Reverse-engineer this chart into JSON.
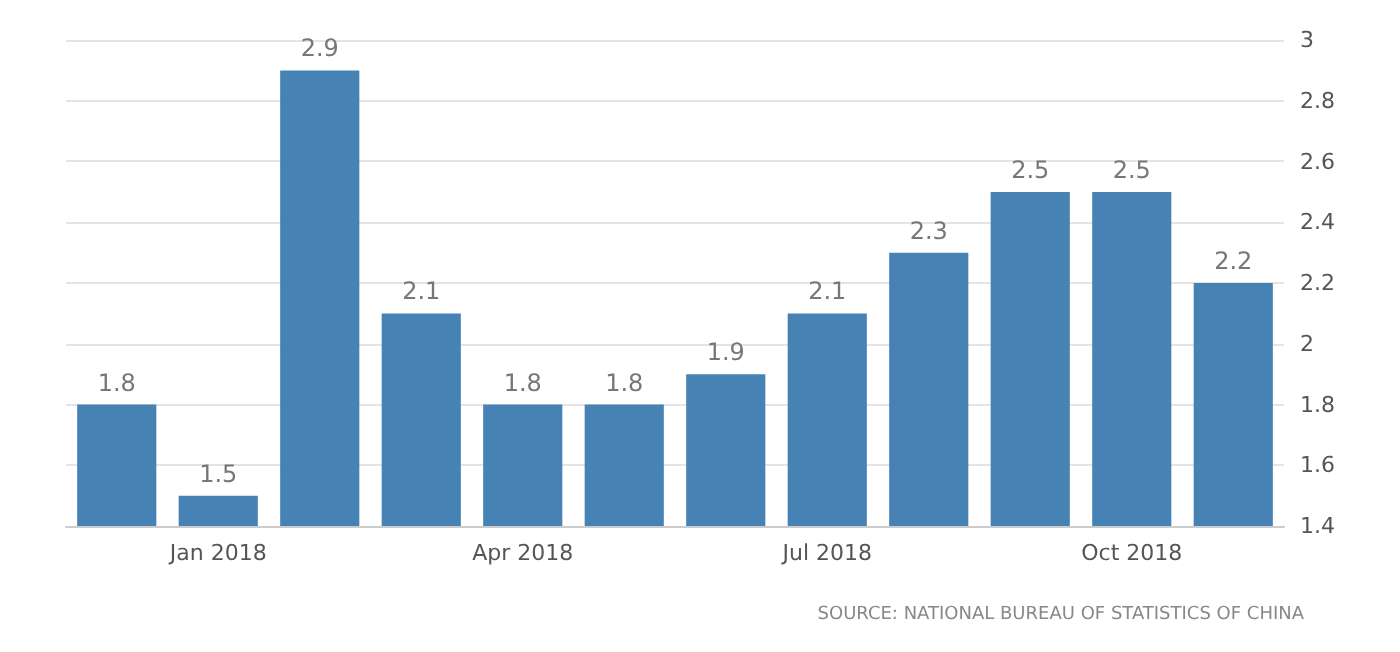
{
  "chart_data": {
    "type": "bar",
    "categories": [
      null,
      "Jan 2018",
      null,
      null,
      "Apr 2018",
      null,
      null,
      "Jul 2018",
      null,
      null,
      "Oct 2018",
      null
    ],
    "values": [
      1.8,
      1.5,
      2.9,
      2.1,
      1.8,
      1.8,
      1.9,
      2.1,
      2.3,
      2.5,
      2.5,
      2.2
    ],
    "color": "#4682b4",
    "ylim": [
      1.4,
      3
    ],
    "yticks": [
      1.4,
      1.6,
      1.8,
      2,
      2.2,
      2.4,
      2.6,
      2.8,
      3
    ],
    "grid": "y",
    "data_labels": true,
    "annotations": [
      "SOURCE: NATIONAL BUREAU OF STATISTICS OF CHINA"
    ]
  }
}
